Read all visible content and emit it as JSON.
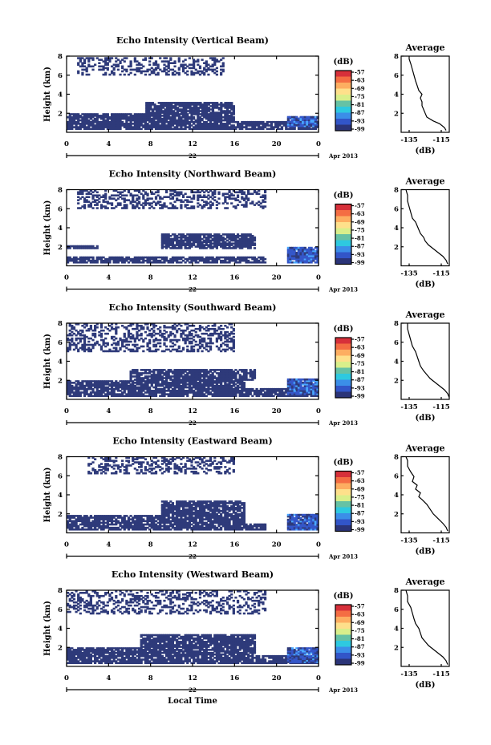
{
  "chart_data": [
    {
      "type": "heatmap",
      "title": "Echo Intensity (Vertical Beam)",
      "ylabel": "Height (km)",
      "x_ticks": [
        "0",
        "4",
        "8",
        "12",
        "16",
        "20",
        "0"
      ],
      "y_ticks": [
        "2",
        "4",
        "6",
        "8"
      ],
      "date_day": "22",
      "date_month": "Apr 2013",
      "xlim": [
        0,
        24
      ],
      "ylim": [
        0,
        8
      ],
      "colorbar": {
        "unit": "(dB)",
        "ticks": [
          "-57",
          "-63",
          "-69",
          "-75",
          "-81",
          "-87",
          "-93",
          "-99"
        ]
      },
      "echo_bands": [
        {
          "t0": 0,
          "t1": 24,
          "h0": 0.3,
          "h1": 1.2,
          "level": "weak"
        },
        {
          "t0": 0,
          "t1": 16,
          "h0": 1.2,
          "h1": 2.0,
          "level": "weak"
        },
        {
          "t0": 7.5,
          "t1": 16,
          "h0": 2.0,
          "h1": 3.2,
          "level": "weak"
        },
        {
          "t0": 1,
          "t1": 15,
          "h0": 6.0,
          "h1": 7.9,
          "level": "sparse"
        },
        {
          "t0": 21,
          "t1": 24,
          "h0": 0.6,
          "h1": 1.7,
          "level": "strong"
        }
      ],
      "average": {
        "title": "Average",
        "xlabel": "(dB)",
        "x_ticks": [
          "-135",
          "-115"
        ],
        "y_ticks": [
          "2",
          "4",
          "6",
          "8"
        ],
        "xlim": [
          -140,
          -110
        ],
        "ylim": [
          0,
          8
        ],
        "profile": [
          [
            -112,
            0.2
          ],
          [
            -113,
            0.5
          ],
          [
            -116,
            0.9
          ],
          [
            -120,
            1.2
          ],
          [
            -124,
            1.6
          ],
          [
            -125,
            2.0
          ],
          [
            -126,
            2.4
          ],
          [
            -127,
            2.8
          ],
          [
            -127,
            3.2
          ],
          [
            -128,
            3.6
          ],
          [
            -127,
            4.0
          ],
          [
            -129,
            4.4
          ],
          [
            -130,
            4.9
          ],
          [
            -131,
            5.4
          ],
          [
            -132,
            6.0
          ],
          [
            -133,
            6.6
          ],
          [
            -134,
            7.2
          ],
          [
            -135,
            7.7
          ],
          [
            -135,
            8.0
          ]
        ]
      }
    },
    {
      "type": "heatmap",
      "title": "Echo Intensity (Northward Beam)",
      "ylabel": "Height (km)",
      "x_ticks": [
        "0",
        "4",
        "8",
        "12",
        "16",
        "20",
        "0"
      ],
      "y_ticks": [
        "2",
        "4",
        "6",
        "8"
      ],
      "date_day": "22",
      "date_month": "Apr 2013",
      "xlim": [
        0,
        24
      ],
      "ylim": [
        0,
        8
      ],
      "colorbar": {
        "unit": "(dB)",
        "ticks": [
          "-57",
          "-63",
          "-69",
          "-75",
          "-81",
          "-87",
          "-93",
          "-99"
        ]
      },
      "echo_bands": [
        {
          "t0": 0,
          "t1": 19,
          "h0": 0.3,
          "h1": 1.0,
          "level": "weak"
        },
        {
          "t0": 0,
          "t1": 3,
          "h0": 1.8,
          "h1": 2.2,
          "level": "weak"
        },
        {
          "t0": 9,
          "t1": 18,
          "h0": 1.8,
          "h1": 3.4,
          "level": "weak"
        },
        {
          "t0": 1,
          "t1": 19,
          "h0": 6.0,
          "h1": 8.0,
          "level": "sparse"
        },
        {
          "t0": 21,
          "t1": 24,
          "h0": 0.3,
          "h1": 2.0,
          "level": "strong"
        }
      ],
      "average": {
        "title": "Average",
        "xlabel": "(dB)",
        "x_ticks": [
          "-135",
          "-115"
        ],
        "y_ticks": [
          "2",
          "4",
          "6",
          "8"
        ],
        "xlim": [
          -140,
          -110
        ],
        "ylim": [
          0,
          8
        ],
        "profile": [
          [
            -111,
            0.2
          ],
          [
            -112,
            0.6
          ],
          [
            -114,
            1.0
          ],
          [
            -117,
            1.4
          ],
          [
            -120,
            1.8
          ],
          [
            -123,
            2.2
          ],
          [
            -125,
            2.6
          ],
          [
            -126,
            3.0
          ],
          [
            -128,
            3.4
          ],
          [
            -129,
            3.8
          ],
          [
            -130,
            4.2
          ],
          [
            -131,
            4.6
          ],
          [
            -133,
            5.0
          ],
          [
            -134,
            5.6
          ],
          [
            -135,
            6.2
          ],
          [
            -136,
            6.8
          ],
          [
            -136,
            7.4
          ],
          [
            -137,
            8.0
          ]
        ]
      }
    },
    {
      "type": "heatmap",
      "title": "Echo Intensity (Southward Beam)",
      "ylabel": "Height (km)",
      "x_ticks": [
        "0",
        "4",
        "8",
        "12",
        "16",
        "20",
        "0"
      ],
      "y_ticks": [
        "2",
        "4",
        "6",
        "8"
      ],
      "date_day": "22",
      "date_month": "Apr 2013",
      "xlim": [
        0,
        24
      ],
      "ylim": [
        0,
        8
      ],
      "colorbar": {
        "unit": "(dB)",
        "ticks": [
          "-57",
          "-63",
          "-69",
          "-75",
          "-81",
          "-87",
          "-93",
          "-99"
        ]
      },
      "echo_bands": [
        {
          "t0": 0,
          "t1": 24,
          "h0": 0.3,
          "h1": 1.2,
          "level": "weak"
        },
        {
          "t0": 0,
          "t1": 17,
          "h0": 1.2,
          "h1": 2.0,
          "level": "weak"
        },
        {
          "t0": 6,
          "t1": 18,
          "h0": 2.0,
          "h1": 3.2,
          "level": "weak"
        },
        {
          "t0": 0,
          "t1": 16,
          "h0": 5.0,
          "h1": 8.0,
          "level": "sparse"
        },
        {
          "t0": 21,
          "t1": 24,
          "h0": 0.5,
          "h1": 2.2,
          "level": "strong"
        }
      ],
      "average": {
        "title": "Average",
        "xlabel": "(dB)",
        "x_ticks": [
          "-135",
          "-115"
        ],
        "y_ticks": [
          "2",
          "4",
          "6",
          "8"
        ],
        "xlim": [
          -140,
          -110
        ],
        "ylim": [
          0,
          8
        ],
        "profile": [
          [
            -110,
            0.2
          ],
          [
            -111,
            0.6
          ],
          [
            -113,
            1.0
          ],
          [
            -116,
            1.4
          ],
          [
            -119,
            1.8
          ],
          [
            -122,
            2.2
          ],
          [
            -124,
            2.6
          ],
          [
            -126,
            3.0
          ],
          [
            -128,
            3.5
          ],
          [
            -129,
            4.0
          ],
          [
            -130,
            4.5
          ],
          [
            -131,
            5.0
          ],
          [
            -133,
            5.6
          ],
          [
            -134,
            6.2
          ],
          [
            -135,
            6.8
          ],
          [
            -136,
            7.4
          ],
          [
            -136,
            8.0
          ]
        ]
      }
    },
    {
      "type": "heatmap",
      "title": "Echo Intensity (Eastward Beam)",
      "ylabel": "Height (km)",
      "x_ticks": [
        "0",
        "4",
        "8",
        "12",
        "16",
        "20",
        "0"
      ],
      "y_ticks": [
        "2",
        "4",
        "6",
        "8"
      ],
      "date_day": "22",
      "date_month": "Apr 2013",
      "xlim": [
        0,
        24
      ],
      "ylim": [
        0,
        8
      ],
      "colorbar": {
        "unit": "(dB)",
        "ticks": [
          "-57",
          "-63",
          "-69",
          "-75",
          "-81",
          "-87",
          "-93",
          "-99"
        ]
      },
      "echo_bands": [
        {
          "t0": 0,
          "t1": 19,
          "h0": 0.3,
          "h1": 1.0,
          "level": "weak"
        },
        {
          "t0": 0,
          "t1": 17,
          "h0": 1.0,
          "h1": 1.9,
          "level": "weak"
        },
        {
          "t0": 9,
          "t1": 17,
          "h0": 1.9,
          "h1": 3.4,
          "level": "weak"
        },
        {
          "t0": 2,
          "t1": 16,
          "h0": 6.2,
          "h1": 8.0,
          "level": "sparse"
        },
        {
          "t0": 21,
          "t1": 24,
          "h0": 0.3,
          "h1": 2.0,
          "level": "strong"
        }
      ],
      "average": {
        "title": "Average",
        "xlabel": "(dB)",
        "x_ticks": [
          "-135",
          "-115"
        ],
        "y_ticks": [
          "2",
          "4",
          "6",
          "8"
        ],
        "xlim": [
          -140,
          -110
        ],
        "ylim": [
          0,
          8
        ],
        "profile": [
          [
            -111,
            0.2
          ],
          [
            -112,
            0.6
          ],
          [
            -114,
            1.0
          ],
          [
            -117,
            1.5
          ],
          [
            -120,
            2.0
          ],
          [
            -122,
            2.5
          ],
          [
            -124,
            3.0
          ],
          [
            -127,
            3.5
          ],
          [
            -129,
            3.8
          ],
          [
            -128,
            4.2
          ],
          [
            -131,
            4.6
          ],
          [
            -130,
            5.0
          ],
          [
            -133,
            5.4
          ],
          [
            -132,
            5.9
          ],
          [
            -134,
            6.4
          ],
          [
            -136,
            7.0
          ],
          [
            -136,
            7.6
          ],
          [
            -137,
            8.0
          ]
        ]
      }
    },
    {
      "type": "heatmap",
      "title": "Echo Intensity (Westward Beam)",
      "ylabel": "Height (km)",
      "x_ticks": [
        "0",
        "4",
        "8",
        "12",
        "16",
        "20",
        "0"
      ],
      "y_ticks": [
        "2",
        "4",
        "6",
        "8"
      ],
      "date_day": "22",
      "date_month": "Apr 2013",
      "xlabel": "Local Time",
      "xlim": [
        0,
        24
      ],
      "ylim": [
        0,
        8
      ],
      "colorbar": {
        "unit": "(dB)",
        "ticks": [
          "-57",
          "-63",
          "-69",
          "-75",
          "-81",
          "-87",
          "-93",
          "-99"
        ]
      },
      "echo_bands": [
        {
          "t0": 0,
          "t1": 24,
          "h0": 0.3,
          "h1": 1.2,
          "level": "weak"
        },
        {
          "t0": 0,
          "t1": 18,
          "h0": 1.2,
          "h1": 2.0,
          "level": "weak"
        },
        {
          "t0": 7,
          "t1": 18,
          "h0": 2.0,
          "h1": 3.4,
          "level": "weak"
        },
        {
          "t0": 0,
          "t1": 19,
          "h0": 5.5,
          "h1": 8.0,
          "level": "sparse"
        },
        {
          "t0": 21,
          "t1": 24,
          "h0": 0.4,
          "h1": 2.0,
          "level": "strong"
        }
      ],
      "average": {
        "title": "Average",
        "xlabel": "(dB)",
        "x_ticks": [
          "-135",
          "-115"
        ],
        "y_ticks": [
          "2",
          "4",
          "6",
          "8"
        ],
        "xlim": [
          -140,
          -110
        ],
        "ylim": [
          0,
          8
        ],
        "profile": [
          [
            -111,
            0.2
          ],
          [
            -112,
            0.6
          ],
          [
            -114,
            1.0
          ],
          [
            -117,
            1.4
          ],
          [
            -120,
            1.8
          ],
          [
            -123,
            2.2
          ],
          [
            -125,
            2.6
          ],
          [
            -127,
            3.0
          ],
          [
            -128,
            3.5
          ],
          [
            -129,
            4.0
          ],
          [
            -131,
            4.5
          ],
          [
            -132,
            5.0
          ],
          [
            -133,
            5.6
          ],
          [
            -134,
            6.2
          ],
          [
            -136,
            6.8
          ],
          [
            -136,
            7.4
          ],
          [
            -137,
            8.0
          ]
        ]
      }
    }
  ],
  "colors": {
    "weak": "#2e3a7a",
    "medium": "#3557c9",
    "strong": "#4aa9ff",
    "colorbar": [
      "#d7303a",
      "#f46d43",
      "#fdae61",
      "#fee08b",
      "#d9ef8b",
      "#66c2a5",
      "#2ec9e0",
      "#3b8ee8",
      "#3255c8",
      "#2b3478"
    ]
  }
}
